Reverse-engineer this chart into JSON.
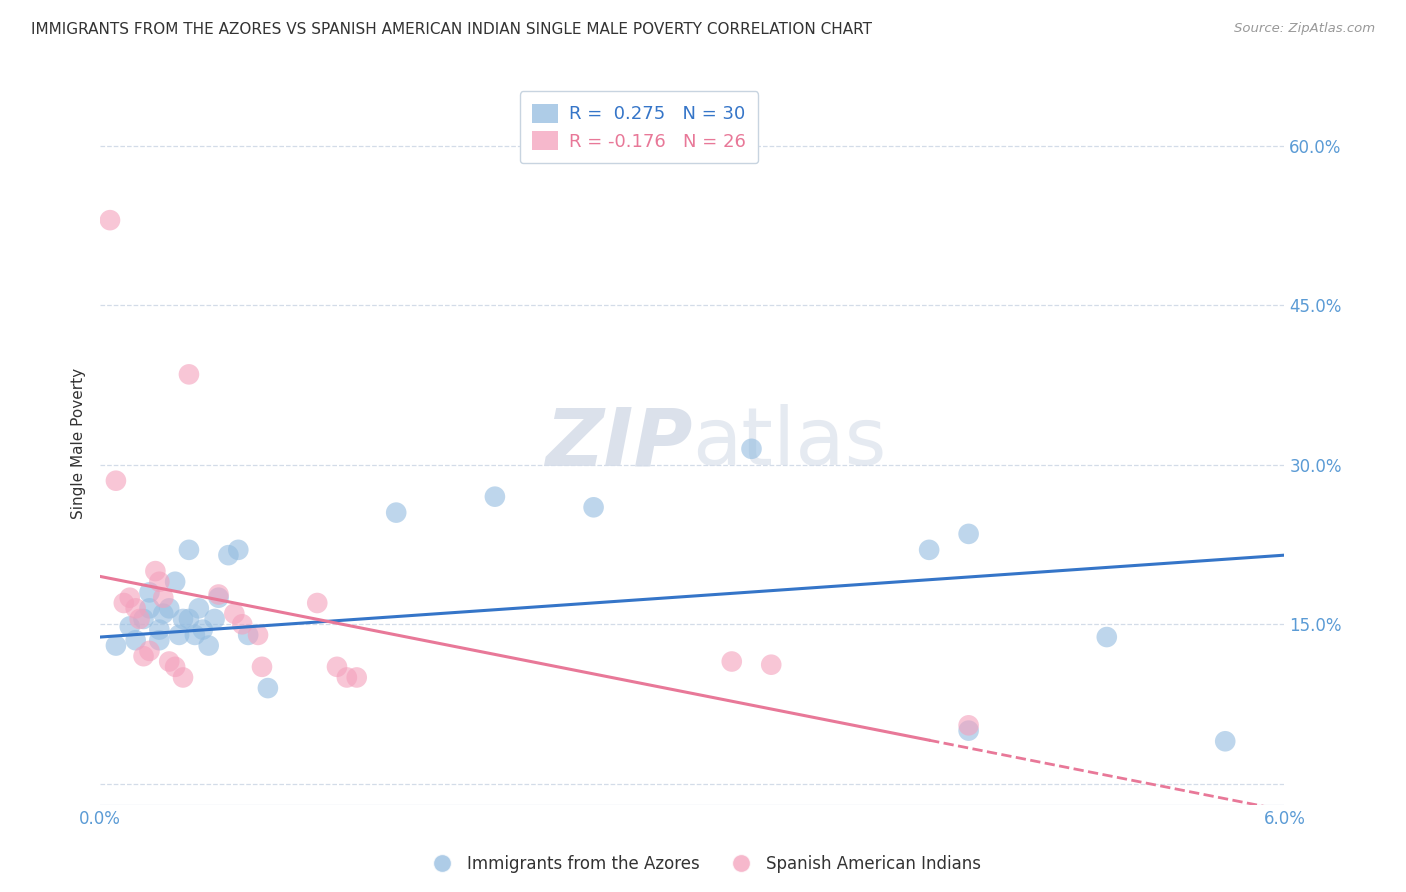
{
  "title": "IMMIGRANTS FROM THE AZORES VS SPANISH AMERICAN INDIAN SINGLE MALE POVERTY CORRELATION CHART",
  "source": "Source: ZipAtlas.com",
  "ylabel_left": "Single Male Poverty",
  "xlim": [
    0.0,
    0.06
  ],
  "ylim": [
    -0.02,
    0.66
  ],
  "plot_ylim": [
    -0.02,
    0.66
  ],
  "ylabel_right_ticks": [
    0.0,
    0.15,
    0.3,
    0.45,
    0.6
  ],
  "ylabel_right_labels": [
    "",
    "15.0%",
    "30.0%",
    "45.0%",
    "60.0%"
  ],
  "xticks": [
    0.0,
    0.01,
    0.02,
    0.03,
    0.04,
    0.05,
    0.06
  ],
  "legend_label1": "Immigrants from the Azores",
  "legend_label2": "Spanish American Indians",
  "blue_scatter": [
    [
      0.0008,
      0.13
    ],
    [
      0.0015,
      0.148
    ],
    [
      0.0018,
      0.135
    ],
    [
      0.0022,
      0.155
    ],
    [
      0.0025,
      0.165
    ],
    [
      0.0025,
      0.18
    ],
    [
      0.003,
      0.135
    ],
    [
      0.003,
      0.145
    ],
    [
      0.0032,
      0.16
    ],
    [
      0.0035,
      0.165
    ],
    [
      0.0038,
      0.19
    ],
    [
      0.004,
      0.14
    ],
    [
      0.0042,
      0.155
    ],
    [
      0.0045,
      0.22
    ],
    [
      0.0045,
      0.155
    ],
    [
      0.0048,
      0.14
    ],
    [
      0.005,
      0.165
    ],
    [
      0.0052,
      0.145
    ],
    [
      0.0055,
      0.13
    ],
    [
      0.0058,
      0.155
    ],
    [
      0.006,
      0.175
    ],
    [
      0.0065,
      0.215
    ],
    [
      0.007,
      0.22
    ],
    [
      0.0075,
      0.14
    ],
    [
      0.0085,
      0.09
    ],
    [
      0.015,
      0.255
    ],
    [
      0.02,
      0.27
    ],
    [
      0.025,
      0.26
    ],
    [
      0.033,
      0.315
    ],
    [
      0.042,
      0.22
    ],
    [
      0.044,
      0.235
    ],
    [
      0.051,
      0.138
    ],
    [
      0.044,
      0.05
    ],
    [
      0.057,
      0.04
    ]
  ],
  "pink_scatter": [
    [
      0.0005,
      0.53
    ],
    [
      0.0008,
      0.285
    ],
    [
      0.0012,
      0.17
    ],
    [
      0.0015,
      0.175
    ],
    [
      0.0018,
      0.165
    ],
    [
      0.002,
      0.155
    ],
    [
      0.0022,
      0.12
    ],
    [
      0.0025,
      0.125
    ],
    [
      0.0028,
      0.2
    ],
    [
      0.003,
      0.19
    ],
    [
      0.0032,
      0.175
    ],
    [
      0.0035,
      0.115
    ],
    [
      0.0038,
      0.11
    ],
    [
      0.0042,
      0.1
    ],
    [
      0.0045,
      0.385
    ],
    [
      0.006,
      0.178
    ],
    [
      0.0068,
      0.16
    ],
    [
      0.0072,
      0.15
    ],
    [
      0.008,
      0.14
    ],
    [
      0.0082,
      0.11
    ],
    [
      0.011,
      0.17
    ],
    [
      0.012,
      0.11
    ],
    [
      0.0125,
      0.1
    ],
    [
      0.013,
      0.1
    ],
    [
      0.032,
      0.115
    ],
    [
      0.034,
      0.112
    ],
    [
      0.044,
      0.055
    ]
  ],
  "blue_line_x": [
    0.0,
    0.06
  ],
  "blue_line_y": [
    0.138,
    0.215
  ],
  "pink_line_x": [
    0.0,
    0.06
  ],
  "pink_line_y": [
    0.195,
    -0.025
  ],
  "blue_color": "#93bce0",
  "pink_color": "#f4a0bc",
  "blue_line_color": "#3575c8",
  "pink_line_color": "#e87898",
  "title_color": "#333333",
  "source_color": "#999999",
  "axis_color": "#5b9bd5",
  "grid_color": "#d3dce8",
  "background_color": "#ffffff",
  "watermark_color": "#d5dce8"
}
